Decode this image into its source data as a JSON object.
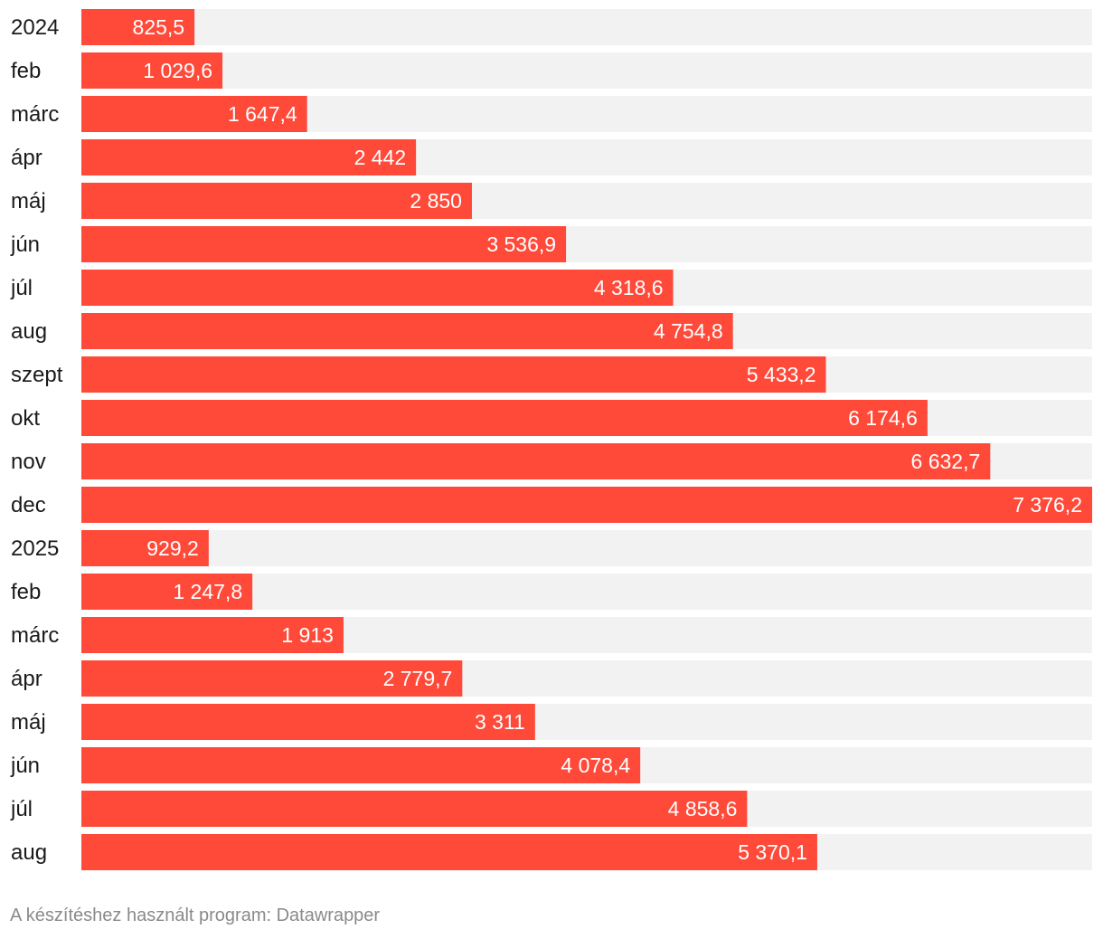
{
  "chart_data": {
    "type": "bar",
    "orientation": "horizontal",
    "categories": [
      "2024",
      "feb",
      "márc",
      "ápr",
      "máj",
      "jún",
      "júl",
      "aug",
      "szept",
      "okt",
      "nov",
      "dec",
      "2025",
      "feb",
      "márc",
      "ápr",
      "máj",
      "jún",
      "júl",
      "aug"
    ],
    "values": [
      825.5,
      1029.6,
      1647.4,
      2442,
      2850,
      3536.9,
      4318.6,
      4754.8,
      5433.2,
      6174.6,
      6632.7,
      7376.2,
      929.2,
      1247.8,
      1913,
      2779.7,
      3311,
      4078.4,
      4858.6,
      5370.1
    ],
    "value_labels": [
      "825,5",
      "1 029,6",
      "1 647,4",
      "2 442",
      "2 850",
      "3 536,9",
      "4 318,6",
      "4 754,8",
      "5 433,2",
      "6 174,6",
      "6 632,7",
      "7 376,2",
      "929,2",
      "1 247,8",
      "1 913",
      "2 779,7",
      "3 311",
      "4 078,4",
      "4 858,6",
      "5 370,1"
    ],
    "xlim": [
      0,
      7376.2
    ],
    "title": "",
    "xlabel": "",
    "ylabel": "",
    "grid": false,
    "legend": "none",
    "colors": {
      "bar": "#ff4a3a",
      "track": "#f2f2f2"
    }
  },
  "footer": {
    "credit": "A készítéshez használt program: Datawrapper"
  }
}
